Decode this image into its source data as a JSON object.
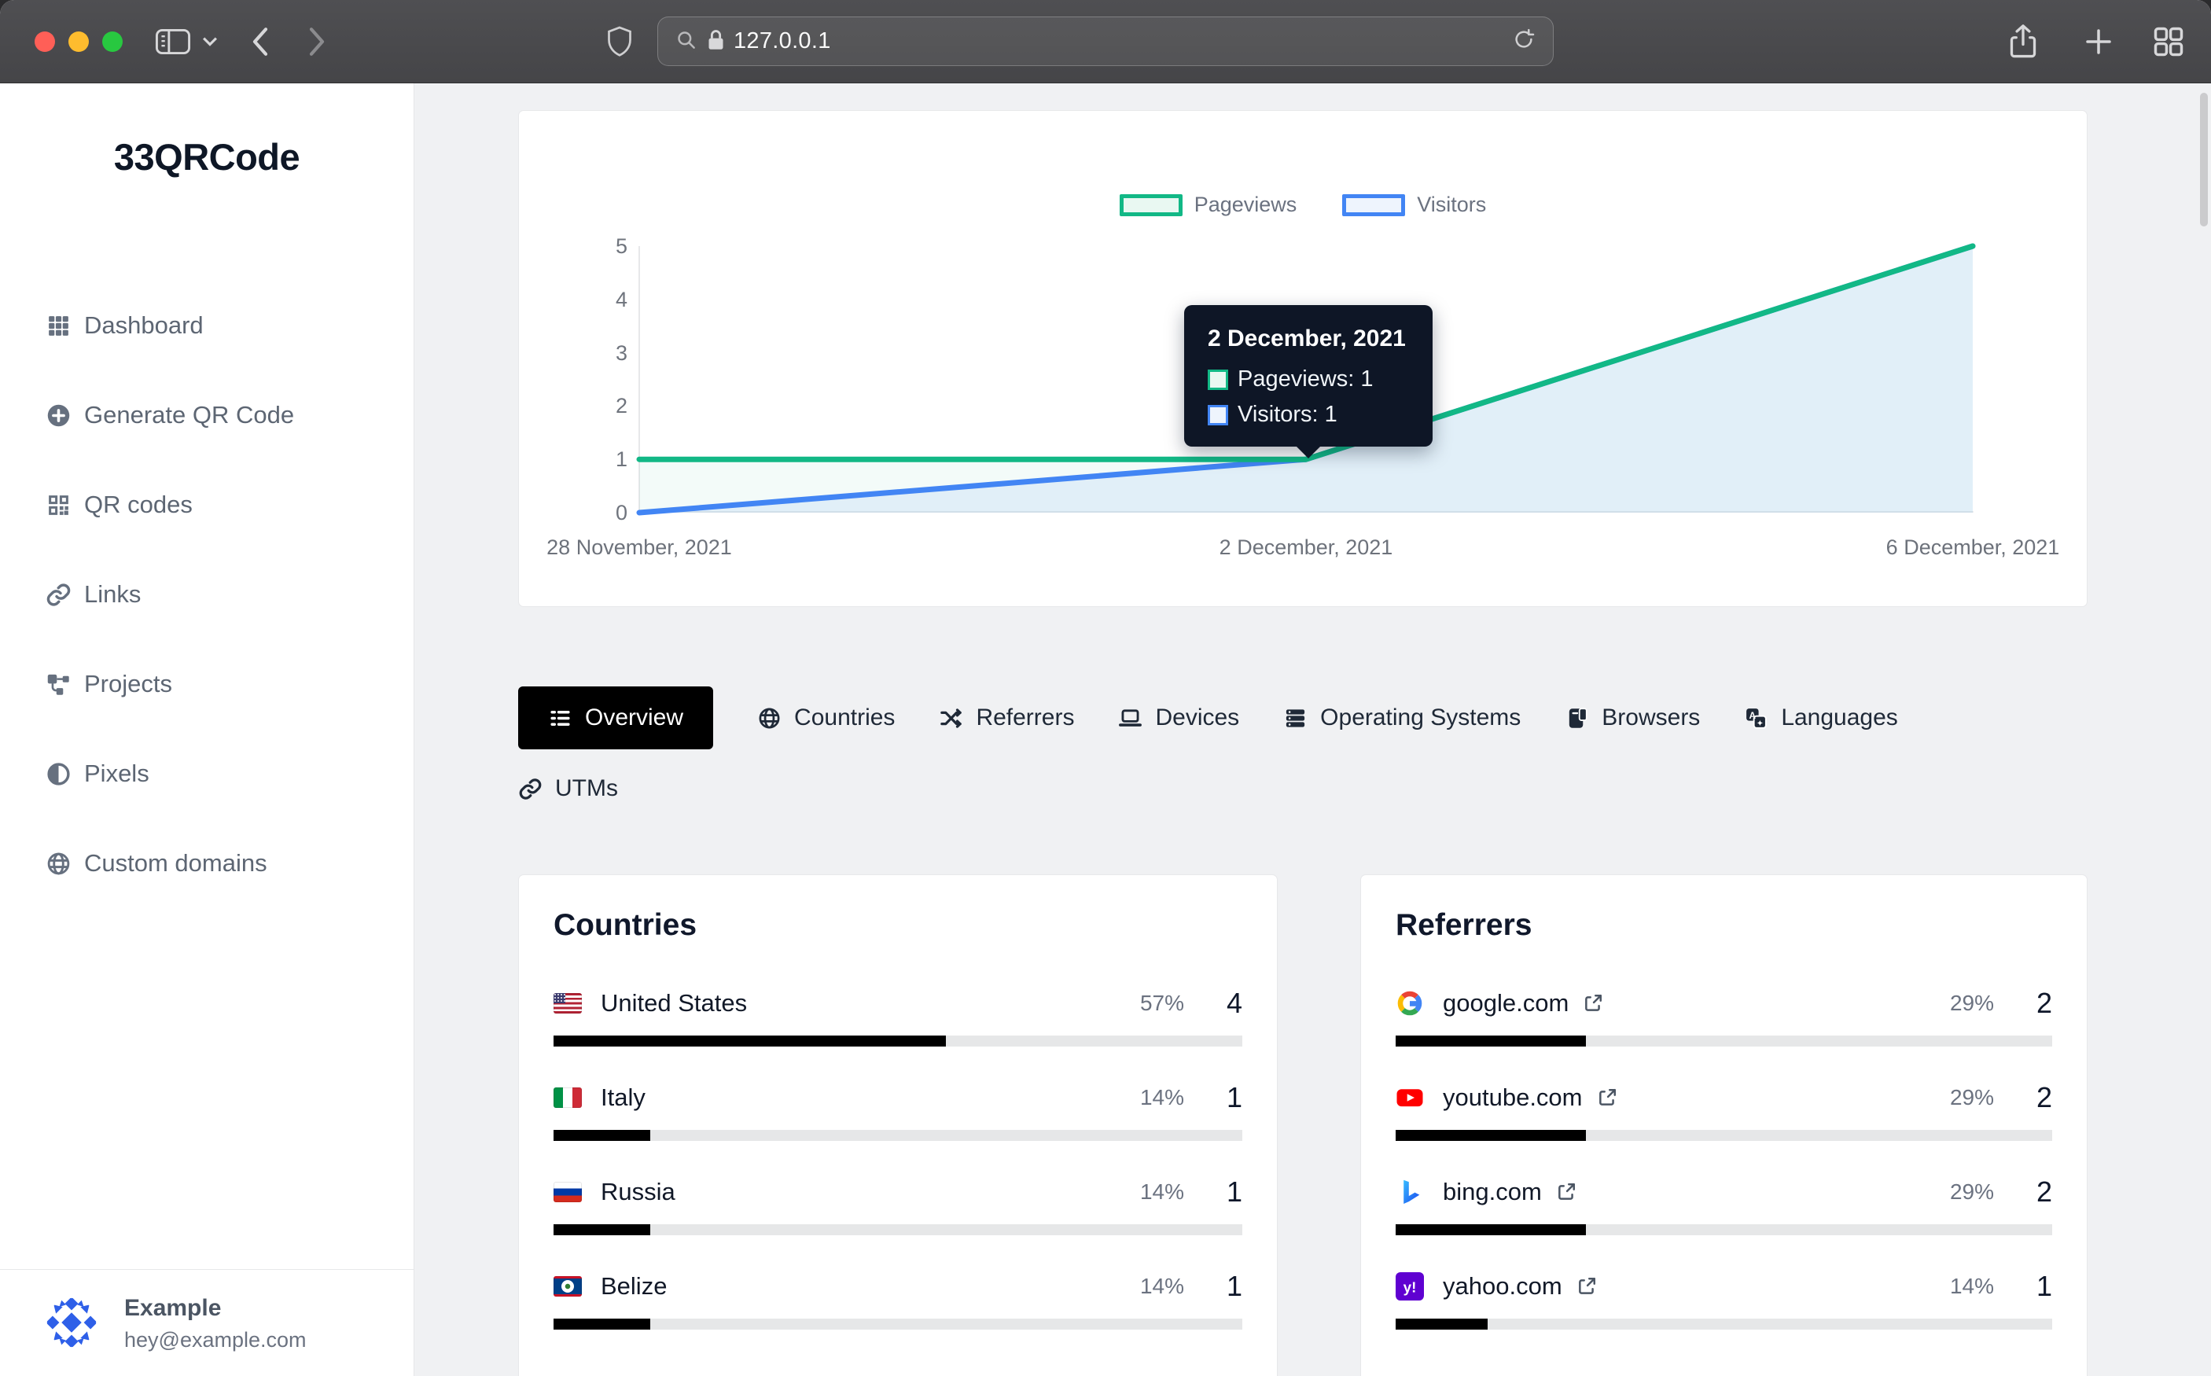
{
  "browser": {
    "url": "127.0.0.1"
  },
  "sidebar": {
    "logo": "33QRCode",
    "items": [
      {
        "label": "Dashboard",
        "icon": "dashboard-grid"
      },
      {
        "label": "Generate QR Code",
        "icon": "plus-circle"
      },
      {
        "label": "QR codes",
        "icon": "qr-code"
      },
      {
        "label": "Links",
        "icon": "link"
      },
      {
        "label": "Projects",
        "icon": "sitemap"
      },
      {
        "label": "Pixels",
        "icon": "contrast"
      },
      {
        "label": "Custom domains",
        "icon": "globe"
      }
    ],
    "user": {
      "name": "Example",
      "email": "hey@example.com"
    }
  },
  "chart_data": {
    "type": "area",
    "x": [
      "28 November, 2021",
      "2 December, 2021",
      "6 December, 2021"
    ],
    "yticks": [
      "5",
      "4",
      "3",
      "2",
      "1",
      "0"
    ],
    "ylim": [
      0,
      5
    ],
    "grid": false,
    "legend_position": "top",
    "series": [
      {
        "name": "Pageviews",
        "color": "#12b886",
        "swatch": "#e9f8f2",
        "fill": "rgba(18,184,134,0.05)",
        "values": [
          1,
          1,
          5
        ]
      },
      {
        "name": "Visitors",
        "color": "#4285f4",
        "swatch": "#eef4fd",
        "fill": "rgba(66,133,244,0.10)",
        "values": [
          0,
          1,
          5
        ]
      }
    ]
  },
  "tooltip": {
    "title": "2 December, 2021",
    "rows": [
      {
        "text": "Pageviews: 1",
        "color": "#12b886",
        "swatch": "#e9f8f2"
      },
      {
        "text": "Visitors: 1",
        "color": "#4285f4",
        "swatch": "#eef4fd"
      }
    ]
  },
  "tabs": [
    {
      "label": "Overview",
      "icon": "list",
      "state": "active"
    },
    {
      "label": "Countries",
      "icon": "globe",
      "state": ""
    },
    {
      "label": "Referrers",
      "icon": "shuffle",
      "state": ""
    },
    {
      "label": "Devices",
      "icon": "laptop",
      "state": ""
    },
    {
      "label": "Operating Systems",
      "icon": "server",
      "state": ""
    },
    {
      "label": "Browsers",
      "icon": "browser-window",
      "state": ""
    },
    {
      "label": "Languages",
      "icon": "translate",
      "state": ""
    },
    {
      "label": "UTMs",
      "icon": "link",
      "state": ""
    }
  ],
  "countries": {
    "title": "Countries",
    "rows": [
      {
        "icon": "us-flag",
        "name": "United States",
        "percent": "57%",
        "count": "4",
        "bar": 57
      },
      {
        "icon": "italy-flag",
        "name": "Italy",
        "percent": "14%",
        "count": "1",
        "bar": 14
      },
      {
        "icon": "russia-flag",
        "name": "Russia",
        "percent": "14%",
        "count": "1",
        "bar": 14
      },
      {
        "icon": "belize-flag",
        "name": "Belize",
        "percent": "14%",
        "count": "1",
        "bar": 14
      }
    ]
  },
  "referrers": {
    "title": "Referrers",
    "rows": [
      {
        "icon": "google-favicon",
        "name": "google.com",
        "percent": "29%",
        "count": "2",
        "bar": 29
      },
      {
        "icon": "youtube-favicon",
        "name": "youtube.com",
        "percent": "29%",
        "count": "2",
        "bar": 29
      },
      {
        "icon": "bing-favicon",
        "name": "bing.com",
        "percent": "29%",
        "count": "2",
        "bar": 29
      },
      {
        "icon": "yahoo-favicon",
        "name": "yahoo.com",
        "percent": "14%",
        "count": "1",
        "bar": 14
      }
    ]
  }
}
